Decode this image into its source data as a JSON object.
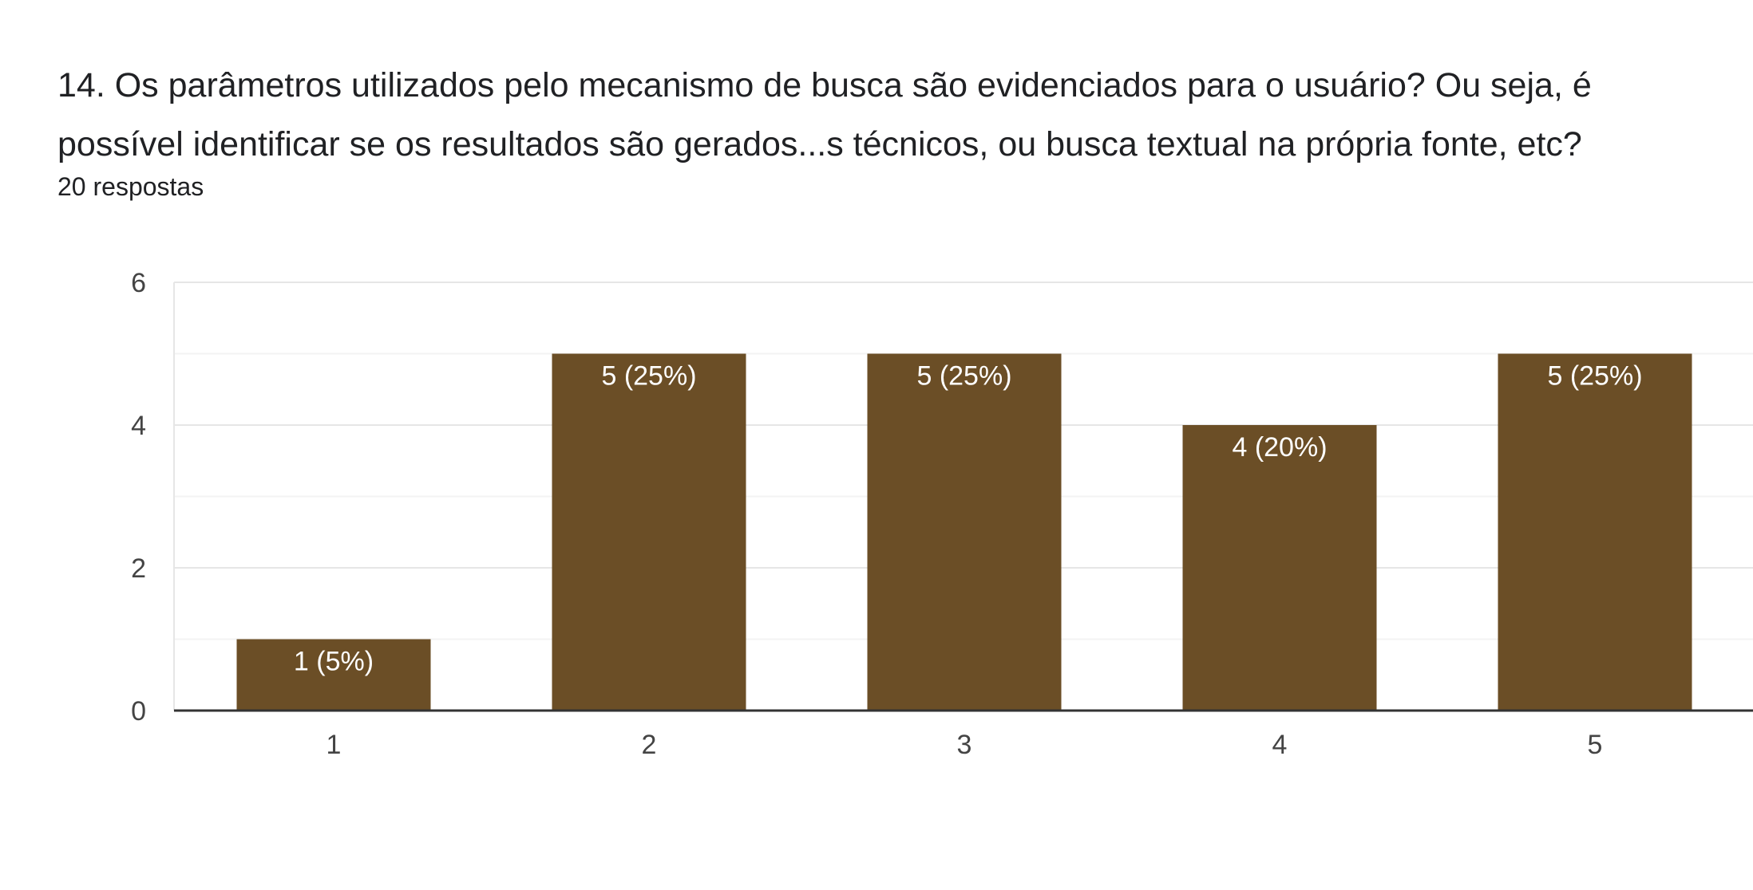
{
  "question": {
    "title": "14. Os parâmetros utilizados pelo mecanismo de busca são evidenciados para o usuário? Ou seja, é possível identificar se os resultados são gerados...s técnicos, ou busca textual na própria fonte, etc?",
    "responses_count": "20 respostas"
  },
  "chart_data": {
    "type": "bar",
    "categories": [
      "1",
      "2",
      "3",
      "4",
      "5"
    ],
    "values": [
      1,
      5,
      5,
      4,
      5
    ],
    "data_labels": [
      "1 (5%)",
      "5 (25%)",
      "5 (25%)",
      "4 (20%)",
      "5 (25%)"
    ],
    "ylim": [
      0,
      6
    ],
    "yticks": [
      0,
      2,
      4,
      6
    ],
    "grid": true,
    "bar_color": "#6b4e26",
    "title": "",
    "xlabel": "",
    "ylabel": ""
  }
}
